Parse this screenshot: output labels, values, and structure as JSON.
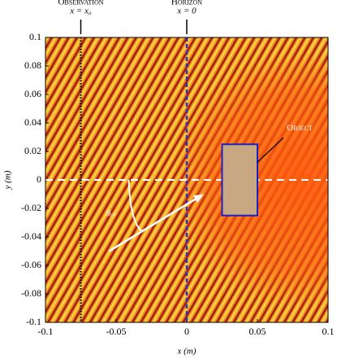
{
  "chart_data": {
    "type": "field",
    "xlabel": "x (m)",
    "ylabel": "y (m)",
    "xlim": [
      -0.1,
      0.1
    ],
    "ylim": [
      -0.1,
      0.1
    ],
    "xticks": [
      -0.1,
      -0.05,
      0,
      0.05,
      0.1
    ],
    "yticks": [
      -0.1,
      -0.08,
      -0.06,
      -0.04,
      -0.02,
      0,
      0.02,
      0.04,
      0.06,
      0.08,
      0.1
    ],
    "vlines": [
      {
        "label": "Observation",
        "sublabel": "x = x₀",
        "x": -0.075,
        "color": "#111111",
        "style": "dotted"
      },
      {
        "label": "Horizon",
        "sublabel": "x = 0",
        "x": 0,
        "color": "#3030c8",
        "style": "dashed"
      }
    ],
    "hline": {
      "y": 0,
      "color": "#ffffff"
    },
    "object": {
      "label": "Object",
      "x": [
        0.025,
        0.05
      ],
      "y": [
        -0.025,
        0.025
      ],
      "color": "#c8a882",
      "edge": "#2020c0"
    },
    "arrow": {
      "label": "θᵢₙ",
      "from": [
        -0.055,
        -0.05
      ],
      "to": [
        0.012,
        -0.01
      ],
      "color": "#ffffff"
    }
  }
}
